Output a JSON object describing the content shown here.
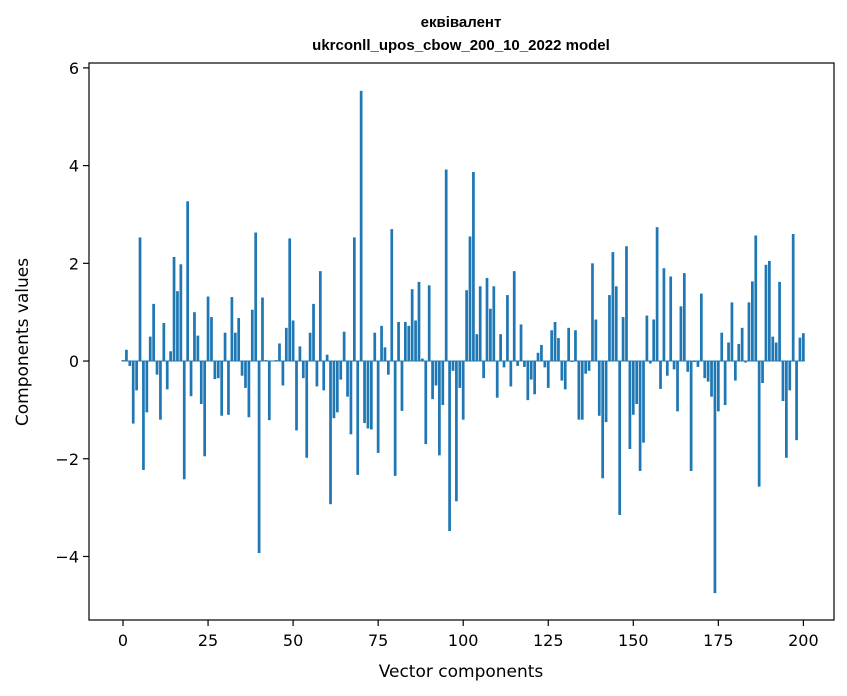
{
  "chart_data": {
    "type": "bar",
    "title_line1": "еквівалент",
    "title_line2": "ukrconll_upos_cbow_200_10_2022 model",
    "xlabel": "Vector components",
    "ylabel": "Components values",
    "xlim": [
      -10,
      209
    ],
    "ylim": [
      -5.3,
      6.1
    ],
    "xticks": [
      0,
      25,
      50,
      75,
      100,
      125,
      150,
      175,
      200
    ],
    "xtick_labels": [
      "0",
      "25",
      "50",
      "75",
      "100",
      "125",
      "150",
      "175",
      "200"
    ],
    "yticks": [
      -4,
      -2,
      0,
      2,
      4,
      6
    ],
    "ytick_labels": [
      "−4",
      "−2",
      "0",
      "2",
      "4",
      "6"
    ],
    "grid": false,
    "bar_color": "#1f77b4",
    "values": [
      0.02,
      0.23,
      -0.1,
      -1.28,
      -0.6,
      2.53,
      -2.23,
      -1.05,
      0.5,
      1.17,
      -0.28,
      -1.2,
      0.78,
      -0.58,
      0.2,
      2.13,
      1.43,
      1.98,
      -2.42,
      3.27,
      -0.72,
      1.0,
      0.52,
      -0.88,
      -1.95,
      1.32,
      0.9,
      -0.37,
      -0.35,
      -1.12,
      0.58,
      -1.1,
      1.31,
      0.58,
      0.88,
      -0.3,
      -0.55,
      -1.15,
      1.05,
      2.63,
      -3.93,
      1.3,
      0.02,
      -1.21,
      0.0,
      0.02,
      0.36,
      -0.5,
      0.68,
      2.51,
      0.83,
      -1.42,
      0.3,
      -0.35,
      -1.98,
      0.58,
      1.17,
      -0.52,
      1.84,
      -0.6,
      0.13,
      -2.93,
      -1.17,
      -1.05,
      -0.38,
      0.6,
      -0.73,
      -1.5,
      2.53,
      -2.33,
      5.53,
      -1.27,
      -1.38,
      -1.4,
      0.58,
      -1.88,
      0.72,
      0.28,
      -0.28,
      2.7,
      -2.35,
      0.8,
      -1.02,
      0.8,
      0.72,
      1.47,
      0.83,
      1.62,
      0.05,
      -1.7,
      1.55,
      -0.78,
      -0.5,
      -1.93,
      -0.9,
      3.92,
      -3.48,
      -0.2,
      -2.87,
      -0.55,
      -1.2,
      1.45,
      2.55,
      3.87,
      0.55,
      1.53,
      -0.35,
      1.7,
      1.07,
      1.53,
      -0.75,
      0.55,
      -0.13,
      1.35,
      -0.52,
      1.84,
      -0.1,
      0.75,
      -0.12,
      -0.8,
      -0.38,
      -0.68,
      0.17,
      0.33,
      -0.13,
      -0.55,
      0.63,
      0.8,
      0.47,
      -0.4,
      -0.58,
      0.68,
      -0.02,
      0.63,
      -1.2,
      -1.2,
      -0.26,
      -0.2,
      2.0,
      0.85,
      -1.12,
      -2.4,
      -1.25,
      1.35,
      2.23,
      1.53,
      -3.15,
      0.9,
      2.35,
      -1.8,
      -1.1,
      -0.88,
      -2.25,
      -1.67,
      0.93,
      -0.05,
      0.85,
      2.74,
      -0.57,
      1.9,
      -0.3,
      1.73,
      -0.17,
      -1.03,
      1.12,
      1.8,
      -0.22,
      -2.25,
      -0.02,
      -0.12,
      1.38,
      -0.35,
      -0.42,
      -0.73,
      -4.75,
      -1.03,
      0.58,
      -0.9,
      0.38,
      1.2,
      -0.4,
      0.35,
      0.68,
      -0.03,
      1.2,
      1.63,
      2.57,
      -2.57,
      -0.45,
      1.97,
      2.05,
      0.5,
      0.38,
      1.62,
      -0.82,
      -1.98,
      -0.6,
      2.6,
      -1.62,
      0.48,
      0.57
    ]
  }
}
